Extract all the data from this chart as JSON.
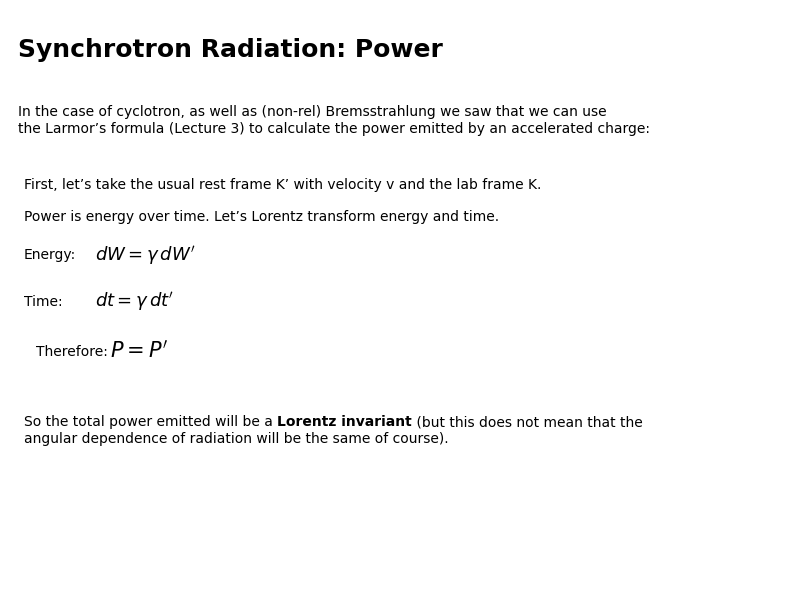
{
  "title": "Synchrotron Radiation: Power",
  "background_color": "#ffffff",
  "text_color": "#000000",
  "figsize": [
    7.94,
    5.95
  ],
  "dpi": 100,
  "para1_line1": "In the case of cyclotron, as well as (non-rel) Bremsstrahlung we saw that we can use",
  "para1_line2": "the Larmor’s formula (Lecture 3) to calculate the power emitted by an accelerated charge:",
  "line1": "First, let’s take the usual rest frame K’ with velocity v and the lab frame K.",
  "line2": "Power is energy over time. Let’s Lorentz transform energy and time.",
  "energy_label": "Energy:",
  "time_label": "Time:",
  "therefore_label": "Therefore:",
  "energy_eq": "$dW = \\gamma\\, dW'$",
  "time_eq": "$dt = \\gamma\\, dt'$",
  "therefore_eq": "$P = P'$",
  "para2_pre": "So the total power emitted will be a ",
  "para2_bold": "Lorentz invariant",
  "para2_post": " (but this does not mean that the",
  "para2_line2": "angular dependence of radiation will be the same of course).",
  "title_fontsize": 18,
  "body_fontsize": 10,
  "eq_fontsize": 13
}
